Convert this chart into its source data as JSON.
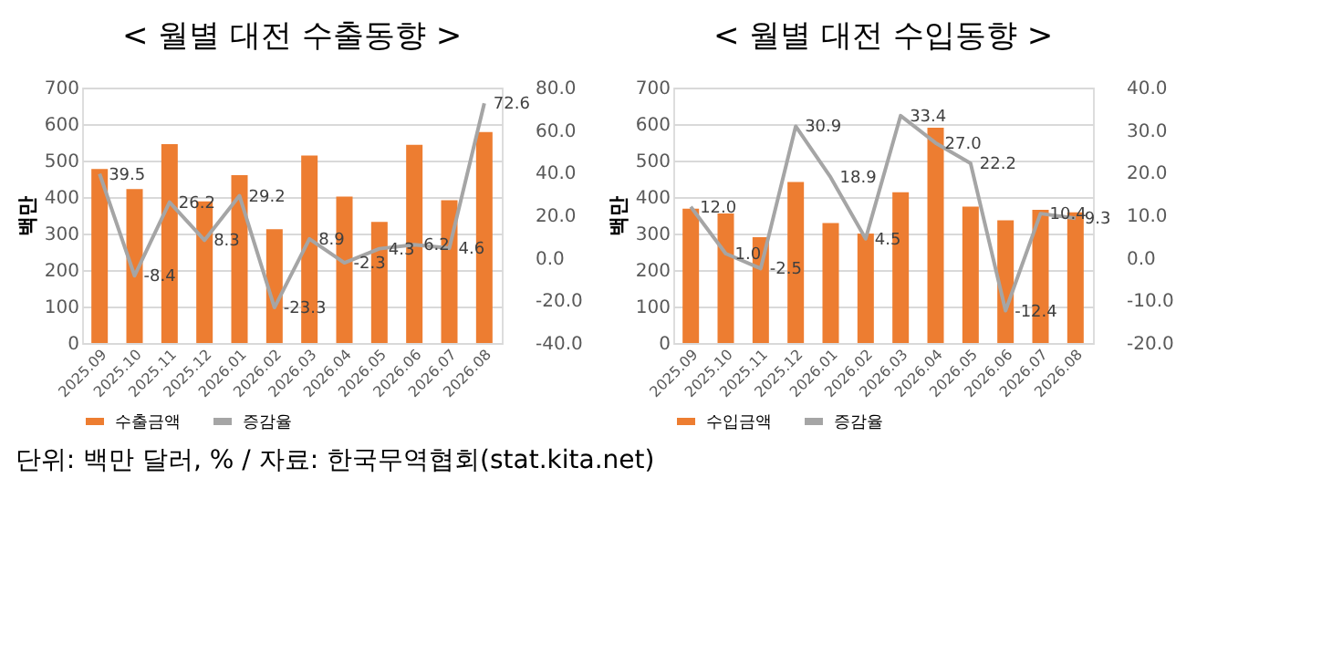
{
  "chart_data": [
    {
      "type": "bar",
      "title": "< 월별 대전 수출동향 >",
      "ylabel": "백만",
      "categories": [
        "2025.09",
        "2025.10",
        "2025.11",
        "2025.12",
        "2026.01",
        "2026.02",
        "2026.03",
        "2026.04",
        "2026.05",
        "2026.06",
        "2026.07",
        "2026.08"
      ],
      "series": [
        {
          "name": "수출금액",
          "color": "#ed7d31",
          "values": [
            477,
            422,
            545,
            388,
            460,
            312,
            514,
            401,
            332,
            543,
            391,
            578
          ]
        },
        {
          "name": "증감율",
          "type": "line",
          "axis": "y2",
          "color": "#a5a5a5",
          "values": [
            39.5,
            -8.4,
            26.2,
            8.3,
            29.2,
            -23.3,
            8.9,
            -2.3,
            4.3,
            6.2,
            4.6,
            72.6
          ],
          "value_labels": [
            "39.5",
            "-8.4",
            "26.2",
            "8.3",
            "29.2",
            "-23.3",
            "8.9",
            "-2.3",
            "4.3",
            "6.2",
            "4.6",
            "72.6"
          ]
        }
      ],
      "ylim": [
        0,
        700
      ],
      "yticks": [
        0,
        100,
        200,
        300,
        400,
        500,
        600,
        700
      ],
      "y2lim": [
        -40,
        80
      ],
      "y2ticks": [
        {
          "value": -40,
          "label": "-40.0"
        },
        {
          "value": -20,
          "label": "-20.0"
        },
        {
          "value": 0,
          "label": "0.0"
        },
        {
          "value": 20,
          "label": "20.0"
        },
        {
          "value": 40,
          "label": "40.0"
        },
        {
          "value": 60,
          "label": "60.0"
        },
        {
          "value": 80,
          "label": "80.0"
        }
      ],
      "grid": "y",
      "legend": "bottom",
      "marker": "none",
      "line_style": "solid",
      "annotations": [
        "단위: 백만 달러, % / 자료: 한국무역협회(stat.kita.net)"
      ]
    },
    {
      "type": "bar",
      "title": "< 월별 대전 수입동향 >",
      "ylabel": "백만",
      "categories": [
        "2025.09",
        "2025.10",
        "2025.11",
        "2025.12",
        "2026.01",
        "2026.02",
        "2026.03",
        "2026.04",
        "2026.05",
        "2026.06",
        "2026.07",
        "2026.08"
      ],
      "series": [
        {
          "name": "수입금액",
          "color": "#ed7d31",
          "values": [
            368,
            355,
            290,
            441,
            329,
            300,
            413,
            590,
            374,
            336,
            365,
            358
          ]
        },
        {
          "name": "증감율",
          "type": "line",
          "axis": "y2",
          "color": "#a5a5a5",
          "values": [
            12.0,
            1.0,
            -2.5,
            30.9,
            18.9,
            4.5,
            33.4,
            27.0,
            22.2,
            -12.4,
            10.4,
            9.3
          ],
          "value_labels": [
            "12.0",
            "1.0",
            "-2.5",
            "30.9",
            "18.9",
            "4.5",
            "33.4",
            "27.0",
            "22.2",
            "-12.4",
            "10.4",
            "9.3"
          ]
        }
      ],
      "ylim": [
        0,
        700
      ],
      "yticks": [
        0,
        100,
        200,
        300,
        400,
        500,
        600,
        700
      ],
      "y2lim": [
        -20,
        40
      ],
      "y2ticks": [
        {
          "value": -20,
          "label": "-20.0"
        },
        {
          "value": -10,
          "label": "-10.0"
        },
        {
          "value": 0,
          "label": "0.0"
        },
        {
          "value": 10,
          "label": "10.0"
        },
        {
          "value": 20,
          "label": "20.0"
        },
        {
          "value": 30,
          "label": "30.0"
        },
        {
          "value": 40,
          "label": "40.0"
        }
      ],
      "grid": "y",
      "legend": "bottom",
      "marker": "none",
      "line_style": "solid"
    }
  ]
}
